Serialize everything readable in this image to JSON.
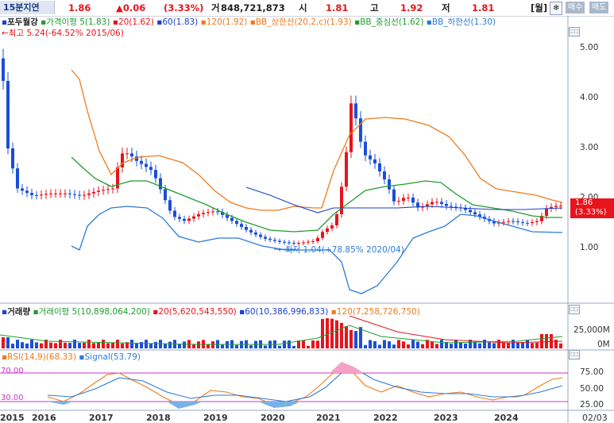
{
  "toolbar": {
    "name": "15분지연",
    "price": "1.86",
    "change": "▲0.06",
    "change_pct": "(3.33%)",
    "volume_label": "거",
    "volume": "848,721,873",
    "open_label": "시",
    "open": "1.81",
    "high_label": "고",
    "high": "1.92",
    "low_label": "저",
    "low": "1.81",
    "period_label": "[월]",
    "buy_label": "매수",
    "sell_label": "매도"
  },
  "price_panel": {
    "legend_title": "포두월강",
    "legend_ma5": "가격이평 5(1.83)",
    "legend_ma20": "20(1.62)",
    "legend_ma60": "60(1.83)",
    "legend_ma120": "120(1.92)",
    "legend_bb_up": "BB_상한선(20,2,c)(1.93)",
    "legend_bb_mid": "BB_중심선(1.62)",
    "legend_bb_low": "BB_하한선(1.30)",
    "high_note": "←최고 5.24(-64.52% 2015/06)",
    "low_note": "←최저 1.04(+78.85% 2020/04)",
    "y_ticks": [
      "5.00",
      "4.00",
      "3.00",
      "2.00",
      "1.00"
    ],
    "price_tag": "1.86",
    "price_tag_pct": "(3.33%)"
  },
  "volume_panel": {
    "legend_title": "거래량",
    "legend_ma5": "거래이평 5(10,898,064,200)",
    "legend_ma20": "20(5,620,543,550)",
    "legend_ma60": "60(10,386,996,833)",
    "legend_ma120": "120(7,258,726,750)",
    "y_ticks": [
      "25,000M",
      "0M"
    ]
  },
  "rsi_panel": {
    "legend_rsi": "RSI(14,9)(68.33)",
    "legend_signal": "Signal(53.79)",
    "y_ticks": [
      "75.00",
      "50.00",
      "25.00"
    ],
    "left_hi": "70.00",
    "left_lo": "30.00"
  },
  "x_axis": {
    "labels": [
      "2015",
      "2016",
      "2017",
      "2018",
      "2019",
      "2020",
      "2021",
      "2022",
      "2023",
      "2024"
    ],
    "last_date": "02/03"
  },
  "colors": {
    "up": "#e8141c",
    "down": "#1a4fd6",
    "ma5": "#1f9d2e",
    "ma20": "#e8141c",
    "ma60": "#1a3fd0",
    "ma120": "#f07a1c",
    "bb": "#2b7bd8",
    "rsi": "#f07a1c",
    "signal": "#2b7bd8",
    "guide": "#cc33cc"
  },
  "chart_data": {
    "type": "line",
    "x": [
      "2015",
      "2016",
      "2017",
      "2018",
      "2019",
      "2020",
      "2021",
      "2022",
      "2023",
      "2024"
    ],
    "y_range": [
      0.7,
      5.6
    ],
    "price_series": [
      {
        "x": "2015",
        "close": 3.6
      },
      {
        "x": "2016",
        "close": 2.1
      },
      {
        "x": "2017",
        "close": 2.3
      },
      {
        "x": "2018",
        "close": 2.0
      },
      {
        "x": "2019",
        "close": 1.6
      },
      {
        "x": "2020",
        "close": 1.15
      },
      {
        "x": "2021",
        "close": 3.0
      },
      {
        "x": "2022",
        "close": 2.0
      },
      {
        "x": "2023",
        "close": 1.75
      },
      {
        "x": "2024",
        "close": 1.86
      }
    ],
    "rsi_range": [
      0,
      100
    ]
  }
}
